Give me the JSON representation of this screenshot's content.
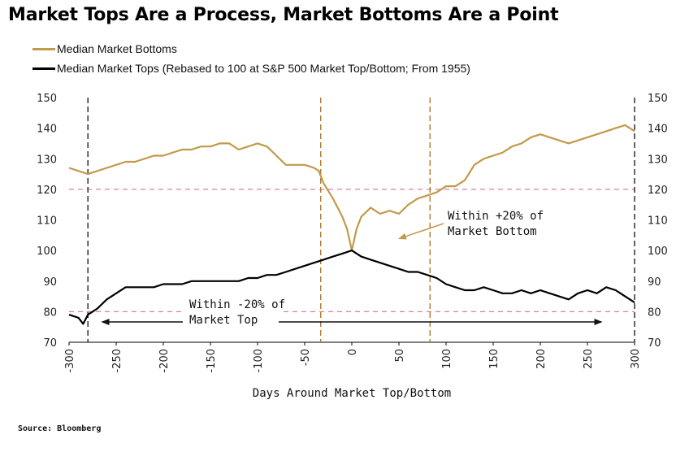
{
  "title": "Market Tops Are a Process, Market Bottoms Are a Point",
  "source": "Source: Bloomberg",
  "colors": {
    "bottoms": "#c19a4a",
    "tops": "#000000",
    "ref_line": "#d67fb0",
    "vline_tops": "#222222",
    "vline_bottoms": "#b07a2a"
  },
  "chart_data": {
    "type": "line",
    "title": "Market Tops Are a Process, Market Bottoms Are a Point",
    "xlabel": "Days Around Market Top/Bottom",
    "ylabel": "",
    "xlim": [
      -300,
      300
    ],
    "ylim": [
      70,
      150
    ],
    "x_ticks": [
      "-300",
      "-250",
      "-200",
      "-150",
      "-100",
      "-50",
      "0",
      "50",
      "100",
      "150",
      "200",
      "250",
      "300"
    ],
    "y_ticks_left": [
      "70",
      "80",
      "90",
      "100",
      "110",
      "120",
      "130",
      "140",
      "150"
    ],
    "y_ticks_right": [
      "70",
      "80",
      "90",
      "100",
      "110",
      "120",
      "130",
      "140",
      "150"
    ],
    "grid": false,
    "legend_position": "top-left",
    "series": [
      {
        "name": "Median Market Bottoms",
        "color": "#c19a4a",
        "points": [
          [
            -300,
            127
          ],
          [
            -290,
            126
          ],
          [
            -280,
            125
          ],
          [
            -270,
            126
          ],
          [
            -260,
            127
          ],
          [
            -250,
            128
          ],
          [
            -240,
            129
          ],
          [
            -230,
            129
          ],
          [
            -220,
            130
          ],
          [
            -210,
            131
          ],
          [
            -200,
            131
          ],
          [
            -190,
            132
          ],
          [
            -180,
            133
          ],
          [
            -170,
            133
          ],
          [
            -160,
            134
          ],
          [
            -150,
            134
          ],
          [
            -140,
            135
          ],
          [
            -130,
            135
          ],
          [
            -120,
            133
          ],
          [
            -110,
            134
          ],
          [
            -100,
            135
          ],
          [
            -90,
            134
          ],
          [
            -80,
            131
          ],
          [
            -70,
            128
          ],
          [
            -60,
            128
          ],
          [
            -50,
            128
          ],
          [
            -40,
            127
          ],
          [
            -35,
            126
          ],
          [
            -30,
            122
          ],
          [
            -20,
            117
          ],
          [
            -10,
            111
          ],
          [
            -5,
            107
          ],
          [
            0,
            100
          ],
          [
            5,
            107
          ],
          [
            10,
            111
          ],
          [
            20,
            114
          ],
          [
            30,
            112
          ],
          [
            40,
            113
          ],
          [
            50,
            112
          ],
          [
            60,
            115
          ],
          [
            70,
            117
          ],
          [
            80,
            118
          ],
          [
            90,
            119
          ],
          [
            100,
            121
          ],
          [
            110,
            121
          ],
          [
            120,
            123
          ],
          [
            130,
            128
          ],
          [
            140,
            130
          ],
          [
            150,
            131
          ],
          [
            160,
            132
          ],
          [
            170,
            134
          ],
          [
            180,
            135
          ],
          [
            190,
            137
          ],
          [
            200,
            138
          ],
          [
            210,
            137
          ],
          [
            220,
            136
          ],
          [
            230,
            135
          ],
          [
            240,
            136
          ],
          [
            250,
            137
          ],
          [
            260,
            138
          ],
          [
            270,
            139
          ],
          [
            280,
            140
          ],
          [
            290,
            141
          ],
          [
            300,
            139
          ]
        ]
      },
      {
        "name": "Median Market Tops (Rebased to 100 at S&P 500 Market Top/Bottom; From 1955)",
        "color": "#000000",
        "points": [
          [
            -300,
            79
          ],
          [
            -290,
            78
          ],
          [
            -285,
            76
          ],
          [
            -280,
            79
          ],
          [
            -270,
            81
          ],
          [
            -260,
            84
          ],
          [
            -250,
            86
          ],
          [
            -240,
            88
          ],
          [
            -230,
            88
          ],
          [
            -220,
            88
          ],
          [
            -210,
            88
          ],
          [
            -200,
            89
          ],
          [
            -190,
            89
          ],
          [
            -180,
            89
          ],
          [
            -170,
            90
          ],
          [
            -160,
            90
          ],
          [
            -150,
            90
          ],
          [
            -140,
            90
          ],
          [
            -130,
            90
          ],
          [
            -120,
            90
          ],
          [
            -110,
            91
          ],
          [
            -100,
            91
          ],
          [
            -90,
            92
          ],
          [
            -80,
            92
          ],
          [
            -70,
            93
          ],
          [
            -60,
            94
          ],
          [
            -50,
            95
          ],
          [
            -40,
            96
          ],
          [
            -30,
            97
          ],
          [
            -20,
            98
          ],
          [
            -10,
            99
          ],
          [
            0,
            100
          ],
          [
            10,
            98
          ],
          [
            20,
            97
          ],
          [
            30,
            96
          ],
          [
            40,
            95
          ],
          [
            50,
            94
          ],
          [
            60,
            93
          ],
          [
            70,
            93
          ],
          [
            80,
            92
          ],
          [
            90,
            91
          ],
          [
            100,
            89
          ],
          [
            110,
            88
          ],
          [
            120,
            87
          ],
          [
            130,
            87
          ],
          [
            140,
            88
          ],
          [
            150,
            87
          ],
          [
            160,
            86
          ],
          [
            170,
            86
          ],
          [
            180,
            87
          ],
          [
            190,
            86
          ],
          [
            200,
            87
          ],
          [
            210,
            86
          ],
          [
            220,
            85
          ],
          [
            230,
            84
          ],
          [
            240,
            86
          ],
          [
            250,
            87
          ],
          [
            260,
            86
          ],
          [
            270,
            88
          ],
          [
            280,
            87
          ],
          [
            290,
            85
          ],
          [
            300,
            83
          ]
        ]
      }
    ],
    "reference_lines": [
      120,
      80
    ],
    "vertical_lines": [
      {
        "x": -280,
        "kind": "tops"
      },
      {
        "x": -33,
        "kind": "bottoms"
      },
      {
        "x": 83,
        "kind": "bottoms"
      },
      {
        "x": 300,
        "kind": "tops"
      }
    ],
    "annotations": [
      {
        "text_lines": [
          "Within +20% of",
          "Market Bottom"
        ],
        "anchor_x": 50,
        "anchor_y": 106
      },
      {
        "text_lines": [
          "Within -20% of",
          "Market Top"
        ],
        "anchor_x": -170,
        "anchor_y": 76
      }
    ],
    "arrow_range": [
      -265,
      265
    ]
  }
}
